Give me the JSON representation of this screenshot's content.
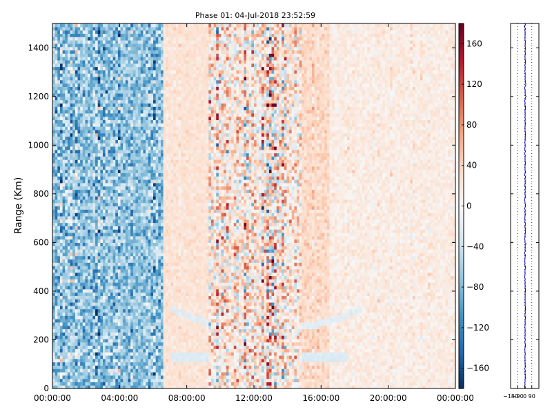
{
  "chart_data": [
    {
      "type": "heatmap",
      "title": "Phase 01: 04-Jul-2018 23:52:59",
      "xlabel": "",
      "ylabel": "Range (Km)",
      "xlim": [
        "00:00:00",
        "24:00:00"
      ],
      "ylim": [
        0,
        1500
      ],
      "x_tick_labels": [
        "00:00:00",
        "04:00:00",
        "08:00:00",
        "12:00:00",
        "16:00:00",
        "20:00:00",
        "00:00:00"
      ],
      "y_tick_labels": [
        "0",
        "200",
        "400",
        "600",
        "800",
        "1000",
        "1200",
        "1400"
      ],
      "y_ticks": [
        0,
        200,
        400,
        600,
        800,
        1000,
        1200,
        1400
      ],
      "colorbar": {
        "vmin": -180,
        "vmax": 180,
        "ticks": [
          -160,
          -120,
          -80,
          -40,
          0,
          40,
          80,
          120,
          160
        ],
        "tick_labels": [
          "−160",
          "−120",
          "−80",
          "−40",
          "0",
          "40",
          "80",
          "120",
          "160"
        ],
        "colormap": "RdBu_r"
      },
      "bands": [
        {
          "from_hour": 0.0,
          "to_hour": 6.6,
          "mean": -70,
          "spread": 90
        },
        {
          "from_hour": 6.6,
          "to_hour": 9.3,
          "mean": 25,
          "spread": 25
        },
        {
          "from_hour": 9.3,
          "to_hour": 14.8,
          "mean": 20,
          "spread": 120
        },
        {
          "from_hour": 14.8,
          "to_hour": 16.5,
          "mean": 35,
          "spread": 30
        },
        {
          "from_hour": 16.5,
          "to_hour": 24.0,
          "mean": 15,
          "spread": 25
        }
      ],
      "features": [
        {
          "kind": "layer",
          "from_hour": 7.0,
          "to_hour": 17.5,
          "range_km": 130,
          "value": -25
        },
        {
          "kind": "arc",
          "from_hour": 7.0,
          "to_hour": 18.5,
          "range_km_low": 240,
          "range_km_high": 330,
          "value": -20
        }
      ]
    },
    {
      "type": "line",
      "title": "",
      "xlabel": "",
      "ylabel": "",
      "xlim": [
        -180,
        180
      ],
      "ylim": [
        0,
        1500
      ],
      "x_tick_labels": [
        "−180",
        "−90",
        "0",
        "90"
      ],
      "x_ticks": [
        -180,
        -90,
        0,
        90
      ],
      "grid": "vertical-dotted",
      "series": [
        {
          "color": "#0000cc",
          "mean": 5,
          "spread": 8
        }
      ]
    }
  ]
}
